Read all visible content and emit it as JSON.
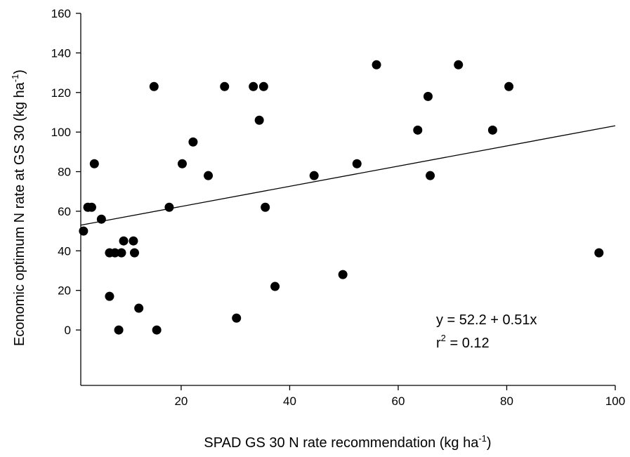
{
  "chart_data": {
    "type": "scatter",
    "xlabel": {
      "main": "SPAD GS 30 N rate recommendation (kg ha",
      "sup": "-1",
      "end": ")"
    },
    "ylabel": {
      "main": "Economic optimum N rate at GS 30 (kg ha",
      "sup": "-1",
      "end": ")"
    },
    "xlim": [
      1.5,
      100
    ],
    "ylim": [
      -28,
      160
    ],
    "x_ticks": [
      20,
      40,
      60,
      80,
      100
    ],
    "y_ticks": [
      0,
      20,
      40,
      60,
      80,
      100,
      120,
      140,
      160
    ],
    "grid": false,
    "points": [
      {
        "x": 2,
        "y": 50
      },
      {
        "x": 2.8,
        "y": 62
      },
      {
        "x": 3.5,
        "y": 62
      },
      {
        "x": 4,
        "y": 84
      },
      {
        "x": 5.3,
        "y": 56
      },
      {
        "x": 6.8,
        "y": 39
      },
      {
        "x": 6.8,
        "y": 17
      },
      {
        "x": 7.8,
        "y": 39
      },
      {
        "x": 8.5,
        "y": 0
      },
      {
        "x": 9,
        "y": 39
      },
      {
        "x": 9.4,
        "y": 45
      },
      {
        "x": 11.2,
        "y": 45
      },
      {
        "x": 11.4,
        "y": 39
      },
      {
        "x": 12.2,
        "y": 11
      },
      {
        "x": 15,
        "y": 123
      },
      {
        "x": 15.5,
        "y": 0
      },
      {
        "x": 17.8,
        "y": 62
      },
      {
        "x": 20.2,
        "y": 84
      },
      {
        "x": 22.2,
        "y": 95
      },
      {
        "x": 25,
        "y": 78
      },
      {
        "x": 28,
        "y": 123
      },
      {
        "x": 30.2,
        "y": 6
      },
      {
        "x": 33.3,
        "y": 123
      },
      {
        "x": 34.4,
        "y": 106
      },
      {
        "x": 35.2,
        "y": 123
      },
      {
        "x": 35.5,
        "y": 62
      },
      {
        "x": 37.3,
        "y": 22
      },
      {
        "x": 44.5,
        "y": 78
      },
      {
        "x": 49.8,
        "y": 28
      },
      {
        "x": 52.4,
        "y": 84
      },
      {
        "x": 56,
        "y": 134
      },
      {
        "x": 63.6,
        "y": 101
      },
      {
        "x": 65.5,
        "y": 118
      },
      {
        "x": 65.9,
        "y": 78
      },
      {
        "x": 71.1,
        "y": 134
      },
      {
        "x": 77.4,
        "y": 101
      },
      {
        "x": 80.4,
        "y": 123
      },
      {
        "x": 97,
        "y": 39
      }
    ],
    "regression": {
      "intercept": 52.2,
      "slope": 0.51
    },
    "annotation": {
      "equation": "y = 52.2 + 0.51x",
      "r2_prefix": "r",
      "r2_sup": "2",
      "r2_value": " = 0.12"
    }
  }
}
